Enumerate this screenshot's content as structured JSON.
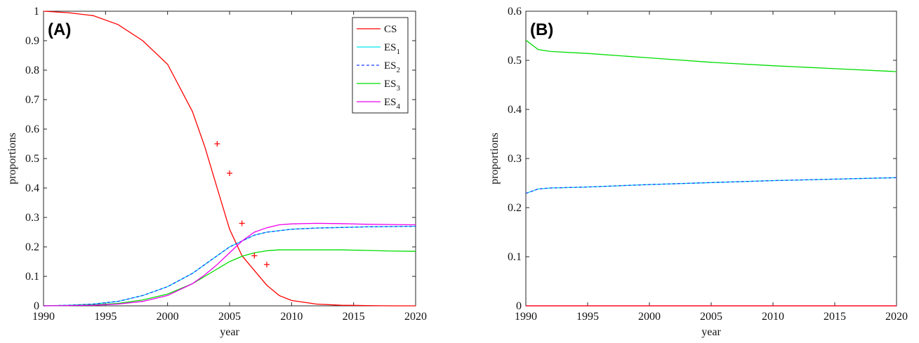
{
  "chart_data": [
    {
      "type": "line",
      "panel_label": "(A)",
      "xlabel": "year",
      "ylabel": "proportions",
      "xlim": [
        1990,
        2020
      ],
      "ylim": [
        0,
        1
      ],
      "xticks": [
        "1990",
        "1995",
        "2000",
        "2005",
        "2010",
        "2015",
        "2020"
      ],
      "yticks": [
        "0",
        "0.1",
        "0.2",
        "0.3",
        "0.4",
        "0.5",
        "0.6",
        "0.7",
        "0.8",
        "0.9",
        "1"
      ],
      "grid": false,
      "legend_position": "top-right",
      "x": [
        1990,
        1992,
        1994,
        1996,
        1998,
        2000,
        2002,
        2003,
        2004,
        2005,
        2006,
        2007,
        2008,
        2009,
        2010,
        2012,
        2014,
        2016,
        2018,
        2020
      ],
      "series": [
        {
          "name": "CS",
          "color": "#ff0000",
          "dash": "solid",
          "values": [
            1.0,
            0.995,
            0.985,
            0.955,
            0.9,
            0.82,
            0.66,
            0.54,
            0.4,
            0.26,
            0.17,
            0.12,
            0.07,
            0.035,
            0.018,
            0.006,
            0.002,
            0.001,
            0.0,
            0.0
          ]
        },
        {
          "name": "ES1",
          "name_base": "ES",
          "name_sub": "1",
          "color": "#00e5ee",
          "dash": "solid",
          "values": [
            0.0,
            0.002,
            0.006,
            0.015,
            0.035,
            0.065,
            0.11,
            0.14,
            0.17,
            0.2,
            0.22,
            0.24,
            0.25,
            0.255,
            0.26,
            0.264,
            0.266,
            0.268,
            0.269,
            0.27
          ]
        },
        {
          "name": "ES2",
          "name_base": "ES",
          "name_sub": "2",
          "color": "#1f3fff",
          "dash": "dashed",
          "values": [
            0.0,
            0.002,
            0.006,
            0.015,
            0.035,
            0.065,
            0.11,
            0.14,
            0.17,
            0.2,
            0.22,
            0.24,
            0.25,
            0.255,
            0.26,
            0.264,
            0.266,
            0.268,
            0.269,
            0.27
          ]
        },
        {
          "name": "ES3",
          "name_base": "ES",
          "name_sub": "3",
          "color": "#00dd00",
          "dash": "solid",
          "values": [
            0.0,
            0.001,
            0.003,
            0.008,
            0.02,
            0.04,
            0.075,
            0.1,
            0.125,
            0.15,
            0.168,
            0.18,
            0.187,
            0.19,
            0.19,
            0.19,
            0.19,
            0.188,
            0.186,
            0.185
          ]
        },
        {
          "name": "ES4",
          "name_base": "ES",
          "name_sub": "4",
          "color": "#ee00ee",
          "dash": "solid",
          "values": [
            0.0,
            0.001,
            0.002,
            0.006,
            0.015,
            0.035,
            0.075,
            0.105,
            0.14,
            0.18,
            0.22,
            0.25,
            0.265,
            0.275,
            0.278,
            0.28,
            0.279,
            0.277,
            0.276,
            0.275
          ]
        }
      ],
      "markers": {
        "symbol": "+",
        "color": "#ff0000",
        "points": [
          [
            2004,
            0.55
          ],
          [
            2005,
            0.45
          ],
          [
            2006,
            0.28
          ],
          [
            2007,
            0.17
          ],
          [
            2008,
            0.14
          ]
        ]
      }
    },
    {
      "type": "line",
      "panel_label": "(B)",
      "xlabel": "year",
      "ylabel": "proportions",
      "xlim": [
        1990,
        2020
      ],
      "ylim": [
        0,
        0.6
      ],
      "xticks": [
        "1990",
        "1995",
        "2000",
        "2005",
        "2010",
        "2015",
        "2020"
      ],
      "yticks": [
        "0",
        "0.1",
        "0.2",
        "0.3",
        "0.4",
        "0.5",
        "0.6"
      ],
      "grid": false,
      "x": [
        1990,
        1991,
        1992,
        1995,
        2000,
        2005,
        2010,
        2015,
        2020
      ],
      "series": [
        {
          "color": "#00dd00",
          "dash": "solid",
          "values": [
            0.541,
            0.522,
            0.518,
            0.514,
            0.505,
            0.496,
            0.489,
            0.483,
            0.477
          ]
        },
        {
          "color": "#00e5ee",
          "dash": "solid",
          "values": [
            0.229,
            0.238,
            0.24,
            0.242,
            0.247,
            0.251,
            0.255,
            0.258,
            0.261
          ]
        },
        {
          "color": "#1f3fff",
          "dash": "dashed",
          "values": [
            0.229,
            0.238,
            0.24,
            0.242,
            0.247,
            0.251,
            0.255,
            0.258,
            0.261
          ]
        },
        {
          "color": "#ee00ee",
          "dash": "solid",
          "values": [
            0.0,
            0.0,
            0.0,
            0.0,
            0.0,
            0.0,
            0.0,
            0.0,
            0.0
          ]
        },
        {
          "color": "#ff0000",
          "dash": "solid",
          "values": [
            0.0,
            0.0,
            0.0,
            0.0,
            0.0,
            0.0,
            0.0,
            0.0,
            0.0
          ]
        }
      ]
    }
  ]
}
